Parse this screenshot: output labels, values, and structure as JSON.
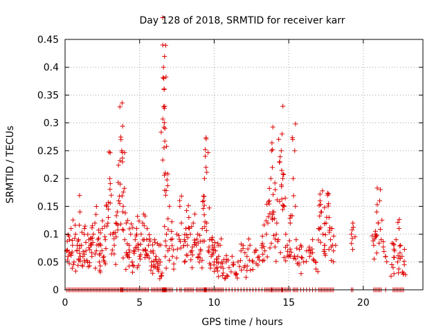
{
  "chart_data": {
    "type": "scatter",
    "title": "Day 128 of 2018, SRMTID for receiver karr",
    "xlabel": "GPS time / hours",
    "ylabel": "SRMTID / TECUs",
    "xlim": [
      0,
      24
    ],
    "ylim": [
      0,
      0.45
    ],
    "grid": true,
    "marker": "+",
    "color": "#dd0000",
    "xticks": [
      0,
      5,
      10,
      15,
      20
    ],
    "yticks": [
      0,
      0.05,
      0.1,
      0.15,
      0.2,
      0.25,
      0.3,
      0.35,
      0.4,
      0.45
    ],
    "xtick_labels": [
      "0",
      "5",
      "10",
      "15",
      "20"
    ],
    "ytick_labels": [
      "0",
      "0.05",
      "0.1",
      "0.15",
      "0.2",
      "0.25",
      "0.3",
      "0.35",
      "0.4",
      "0.45"
    ],
    "series": [
      {
        "name": "SRMTID",
        "points": [
          [
            0.1,
            0.07
          ],
          [
            0.2,
            0.06
          ],
          [
            0.3,
            0.09
          ],
          [
            0.4,
            0.11
          ],
          [
            0.5,
            0.08
          ],
          [
            0.6,
            0.05
          ],
          [
            0.7,
            0.1
          ],
          [
            0.8,
            0.07
          ],
          [
            0.9,
            0.09
          ],
          [
            1.0,
            0.14
          ],
          [
            1.1,
            0.08
          ],
          [
            1.2,
            0.06
          ],
          [
            1.3,
            0.11
          ],
          [
            1.4,
            0.07
          ],
          [
            1.5,
            0.05
          ],
          [
            1.6,
            0.09
          ],
          [
            1.7,
            0.08
          ],
          [
            1.8,
            0.06
          ],
          [
            1.9,
            0.1
          ],
          [
            2.0,
            0.12
          ],
          [
            2.1,
            0.07
          ],
          [
            2.2,
            0.09
          ],
          [
            2.3,
            0.05
          ],
          [
            2.4,
            0.08
          ],
          [
            2.5,
            0.11
          ],
          [
            2.6,
            0.06
          ],
          [
            2.7,
            0.09
          ],
          [
            2.8,
            0.15
          ],
          [
            2.9,
            0.13
          ],
          [
            3.0,
            0.2
          ],
          [
            3.1,
            0.17
          ],
          [
            3.2,
            0.1
          ],
          [
            3.3,
            0.08
          ],
          [
            3.4,
            0.12
          ],
          [
            3.5,
            0.14
          ],
          [
            3.6,
            0.16
          ],
          [
            3.7,
            0.19
          ],
          [
            3.75,
            0.27
          ],
          [
            3.8,
            0.25
          ],
          [
            3.85,
            0.23
          ],
          [
            3.9,
            0.15
          ],
          [
            4.0,
            0.09
          ],
          [
            4.1,
            0.12
          ],
          [
            4.2,
            0.06
          ],
          [
            4.3,
            0.08
          ],
          [
            4.4,
            0.1
          ],
          [
            4.5,
            0.05
          ],
          [
            4.6,
            0.07
          ],
          [
            4.7,
            0.09
          ],
          [
            4.8,
            0.11
          ],
          [
            4.9,
            0.08
          ],
          [
            5.0,
            0.06
          ],
          [
            5.1,
            0.1
          ],
          [
            5.2,
            0.12
          ],
          [
            5.3,
            0.09
          ],
          [
            5.4,
            0.07
          ],
          [
            5.5,
            0.11
          ],
          [
            5.6,
            0.08
          ],
          [
            5.8,
            0.05
          ],
          [
            5.9,
            0.07
          ],
          [
            6.0,
            0.09
          ],
          [
            6.1,
            0.06
          ],
          [
            6.2,
            0.04
          ],
          [
            6.3,
            0.08
          ],
          [
            6.4,
            0.05
          ],
          [
            6.5,
            0.03
          ],
          [
            6.55,
            0.44
          ],
          [
            6.6,
            0.4
          ],
          [
            6.62,
            0.38
          ],
          [
            6.65,
            0.36
          ],
          [
            6.68,
            0.33
          ],
          [
            6.7,
            0.29
          ],
          [
            6.72,
            0.21
          ],
          [
            6.75,
            0.17
          ],
          [
            6.8,
            0.1
          ],
          [
            6.9,
            0.07
          ],
          [
            7.0,
            0.15
          ],
          [
            7.1,
            0.09
          ],
          [
            7.2,
            0.06
          ],
          [
            7.5,
            0.1
          ],
          [
            7.7,
            0.15
          ],
          [
            7.8,
            0.12
          ],
          [
            8.0,
            0.09
          ],
          [
            8.1,
            0.11
          ],
          [
            8.2,
            0.08
          ],
          [
            8.3,
            0.13
          ],
          [
            8.4,
            0.1
          ],
          [
            8.5,
            0.07
          ],
          [
            8.6,
            0.12
          ],
          [
            8.8,
            0.08
          ],
          [
            8.9,
            0.1
          ],
          [
            9.0,
            0.05
          ],
          [
            9.1,
            0.07
          ],
          [
            9.2,
            0.11
          ],
          [
            9.3,
            0.16
          ],
          [
            9.35,
            0.2
          ],
          [
            9.4,
            0.24
          ],
          [
            9.45,
            0.22
          ],
          [
            9.5,
            0.12
          ],
          [
            9.6,
            0.07
          ],
          [
            9.7,
            0.09
          ],
          [
            9.8,
            0.06
          ],
          [
            9.9,
            0.08
          ],
          [
            10.0,
            0.05
          ],
          [
            10.1,
            0.07
          ],
          [
            10.2,
            0.04
          ],
          [
            10.3,
            0.06
          ],
          [
            10.4,
            0.08
          ],
          [
            10.5,
            0.05
          ],
          [
            10.6,
            0.03
          ],
          [
            10.8,
            0.05
          ],
          [
            11.0,
            0.04
          ],
          [
            11.2,
            0.06
          ],
          [
            11.4,
            0.03
          ],
          [
            11.6,
            0.05
          ],
          [
            11.8,
            0.07
          ],
          [
            12.0,
            0.04
          ],
          [
            12.2,
            0.06
          ],
          [
            12.4,
            0.08
          ],
          [
            12.6,
            0.05
          ],
          [
            12.8,
            0.07
          ],
          [
            13.0,
            0.06
          ],
          [
            13.2,
            0.08
          ],
          [
            13.4,
            0.07
          ],
          [
            13.5,
            0.1
          ],
          [
            13.6,
            0.12
          ],
          [
            13.7,
            0.16
          ],
          [
            13.8,
            0.2
          ],
          [
            13.85,
            0.25
          ],
          [
            13.9,
            0.22
          ],
          [
            14.0,
            0.14
          ],
          [
            14.1,
            0.18
          ],
          [
            14.2,
            0.12
          ],
          [
            14.3,
            0.09
          ],
          [
            14.4,
            0.23
          ],
          [
            14.5,
            0.25
          ],
          [
            14.55,
            0.28
          ],
          [
            14.6,
            0.2
          ],
          [
            14.7,
            0.15
          ],
          [
            14.8,
            0.1
          ],
          [
            14.9,
            0.08
          ],
          [
            15.0,
            0.06
          ],
          [
            15.1,
            0.12
          ],
          [
            15.3,
            0.2
          ],
          [
            15.4,
            0.25
          ],
          [
            15.5,
            0.09
          ],
          [
            15.6,
            0.06
          ],
          [
            15.8,
            0.08
          ],
          [
            16.0,
            0.05
          ],
          [
            16.2,
            0.07
          ],
          [
            16.4,
            0.06
          ],
          [
            16.6,
            0.09
          ],
          [
            16.8,
            0.05
          ],
          [
            17.0,
            0.11
          ],
          [
            17.1,
            0.16
          ],
          [
            17.2,
            0.14
          ],
          [
            17.3,
            0.1
          ],
          [
            17.4,
            0.08
          ],
          [
            17.5,
            0.12
          ],
          [
            17.6,
            0.17
          ],
          [
            17.7,
            0.13
          ],
          [
            17.8,
            0.09
          ],
          [
            17.9,
            0.11
          ],
          [
            18.0,
            0.07
          ],
          [
            19.2,
            0.1
          ],
          [
            19.3,
            0.12
          ],
          [
            20.7,
            0.08
          ],
          [
            20.8,
            0.1
          ],
          [
            20.9,
            0.14
          ],
          [
            21.0,
            0.12
          ],
          [
            21.1,
            0.16
          ],
          [
            21.2,
            0.09
          ],
          [
            21.5,
            0.06
          ],
          [
            22.0,
            0.04
          ],
          [
            22.1,
            0.07
          ],
          [
            22.2,
            0.09
          ],
          [
            22.3,
            0.05
          ],
          [
            22.4,
            0.11
          ],
          [
            22.5,
            0.08
          ],
          [
            22.6,
            0.06
          ],
          [
            22.7,
            0.03
          ]
        ]
      }
    ]
  }
}
